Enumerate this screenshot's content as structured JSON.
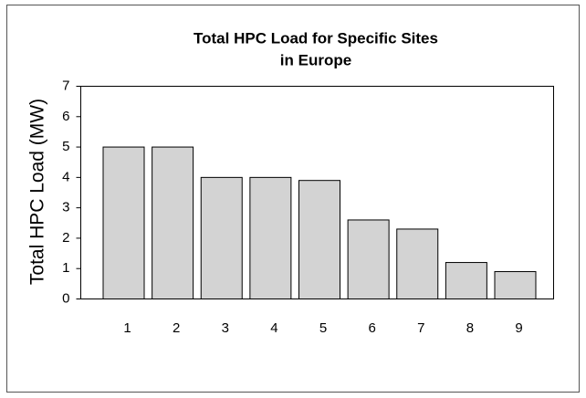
{
  "chart_data": {
    "type": "bar",
    "title": [
      "Total HPC Load for Specific Sites",
      "in Europe"
    ],
    "y_label": "Total HPC Load (MW)",
    "categories": [
      "1",
      "2",
      "3",
      "4",
      "5",
      "6",
      "7",
      "8",
      "9"
    ],
    "values": [
      5,
      5,
      4,
      4,
      3.9,
      2.6,
      2.3,
      1.2,
      0.9
    ],
    "color": "#d3d3d3",
    "ylim": [
      0,
      7
    ],
    "yticks": [
      0,
      1,
      2,
      3,
      4,
      5,
      6,
      7
    ],
    "grid": false
  }
}
